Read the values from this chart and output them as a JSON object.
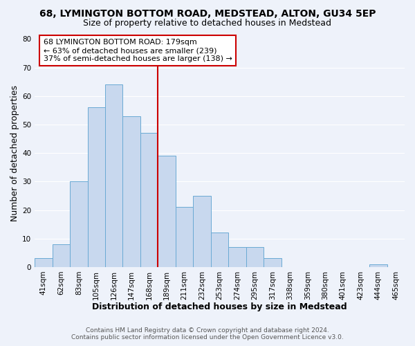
{
  "title": "68, LYMINGTON BOTTOM ROAD, MEDSTEAD, ALTON, GU34 5EP",
  "subtitle": "Size of property relative to detached houses in Medstead",
  "xlabel": "Distribution of detached houses by size in Medstead",
  "ylabel": "Number of detached properties",
  "bar_labels": [
    "41sqm",
    "62sqm",
    "83sqm",
    "105sqm",
    "126sqm",
    "147sqm",
    "168sqm",
    "189sqm",
    "211sqm",
    "232sqm",
    "253sqm",
    "274sqm",
    "295sqm",
    "317sqm",
    "338sqm",
    "359sqm",
    "380sqm",
    "401sqm",
    "423sqm",
    "444sqm",
    "465sqm"
  ],
  "bar_values": [
    3,
    8,
    30,
    56,
    64,
    53,
    47,
    39,
    21,
    25,
    12,
    7,
    7,
    3,
    0,
    0,
    0,
    0,
    0,
    1,
    0
  ],
  "bar_color": "#c8d8ee",
  "bar_edge_color": "#6aaad4",
  "ylim": [
    0,
    80
  ],
  "yticks": [
    0,
    10,
    20,
    30,
    40,
    50,
    60,
    70,
    80
  ],
  "vline_color": "#cc0000",
  "annotation_title": "68 LYMINGTON BOTTOM ROAD: 179sqm",
  "annotation_line1": "← 63% of detached houses are smaller (239)",
  "annotation_line2": "37% of semi-detached houses are larger (138) →",
  "annotation_box_facecolor": "#ffffff",
  "annotation_box_edgecolor": "#cc0000",
  "footer1": "Contains HM Land Registry data © Crown copyright and database right 2024.",
  "footer2": "Contains public sector information licensed under the Open Government Licence v3.0.",
  "fig_facecolor": "#eef2fa",
  "plot_facecolor": "#eef2fa",
  "grid_color": "#ffffff",
  "title_fontsize": 10,
  "subtitle_fontsize": 9,
  "axis_label_fontsize": 9,
  "tick_fontsize": 7.5,
  "annotation_fontsize": 8,
  "footer_fontsize": 6.5
}
